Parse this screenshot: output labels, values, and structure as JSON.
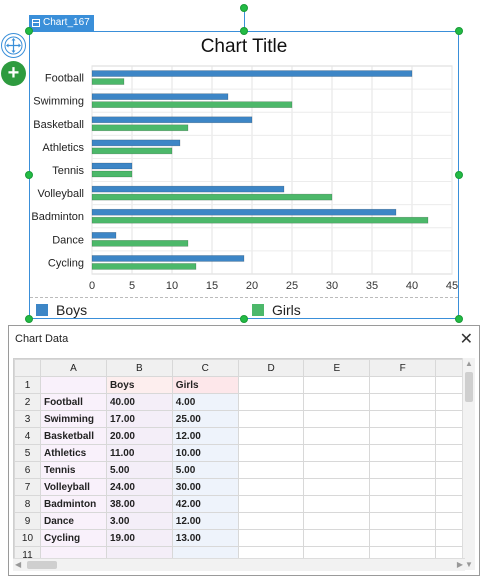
{
  "chart_tag": "Chart_167",
  "chart_data": {
    "type": "bar",
    "orientation": "horizontal",
    "title": "Chart Title",
    "categories": [
      "Football",
      "Swimming",
      "Basketball",
      "Athletics",
      "Tennis",
      "Volleyball",
      "Badminton",
      "Dance",
      "Cycling"
    ],
    "series": [
      {
        "name": "Boys",
        "values": [
          40,
          17,
          20,
          11,
          5,
          24,
          38,
          3,
          19
        ],
        "color": "#3d86c6"
      },
      {
        "name": "Girls",
        "values": [
          4,
          25,
          12,
          10,
          5,
          30,
          42,
          12,
          13
        ],
        "color": "#4cb86a"
      }
    ],
    "xlim": [
      0,
      45
    ],
    "xticks": [
      0,
      5,
      10,
      15,
      20,
      25,
      30,
      35,
      40,
      45
    ],
    "grid": true,
    "legend_position": "bottom"
  },
  "data_window": {
    "title": "Chart Data",
    "close_label": "✕",
    "column_headers": [
      "",
      "A",
      "B",
      "C",
      "D",
      "E",
      "F"
    ],
    "rows": [
      {
        "num": "1",
        "a": "",
        "b": "Boys",
        "c": "Girls"
      },
      {
        "num": "2",
        "a": "Football",
        "b": "40.00",
        "c": "4.00"
      },
      {
        "num": "3",
        "a": "Swimming",
        "b": "17.00",
        "c": "25.00"
      },
      {
        "num": "4",
        "a": "Basketball",
        "b": "20.00",
        "c": "12.00"
      },
      {
        "num": "5",
        "a": "Athletics",
        "b": "11.00",
        "c": "10.00"
      },
      {
        "num": "6",
        "a": "Tennis",
        "b": "5.00",
        "c": "5.00"
      },
      {
        "num": "7",
        "a": "Volleyball",
        "b": "24.00",
        "c": "30.00"
      },
      {
        "num": "8",
        "a": "Badminton",
        "b": "38.00",
        "c": "42.00"
      },
      {
        "num": "9",
        "a": "Dance",
        "b": "3.00",
        "c": "12.00"
      },
      {
        "num": "10",
        "a": "Cycling",
        "b": "19.00",
        "c": "13.00"
      },
      {
        "num": "11",
        "a": "",
        "b": "",
        "c": ""
      }
    ]
  }
}
